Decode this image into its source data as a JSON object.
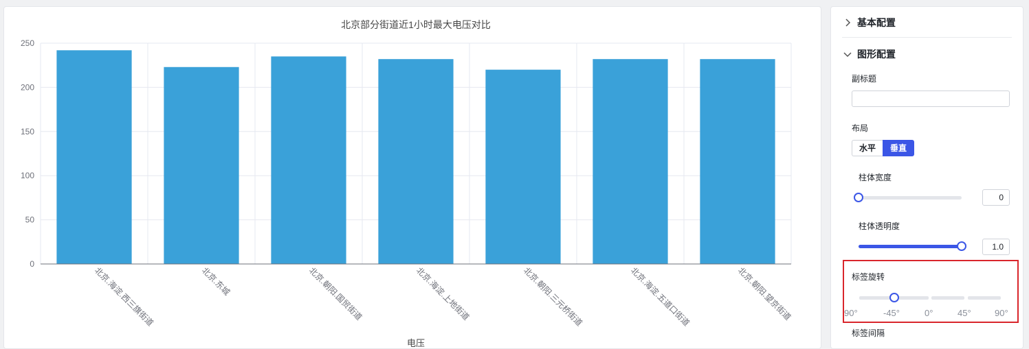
{
  "chart_data": {
    "type": "bar",
    "title": "北京部分街道近1小时最大电压对比",
    "xlabel": "电压",
    "ylabel": "",
    "categories": [
      "北京.海淀.西三旗街道",
      "北京.东城",
      "北京.朝阳.国贸街道",
      "北京.海淀.上地街道",
      "北京.朝阳.三元桥街道",
      "北京.海淀.五道口街道",
      "北京.朝阳.望京街道"
    ],
    "values": [
      242,
      223,
      235,
      232,
      220,
      232,
      232
    ],
    "ylim": [
      0,
      250
    ],
    "yticks": [
      0,
      50,
      100,
      150,
      200,
      250
    ],
    "grid": true,
    "bar_color": "#3aa1d9"
  },
  "config": {
    "basic_section": "基本配置",
    "graph_section": "图形配置",
    "subtitle_label": "副标题",
    "subtitle_value": "",
    "layout_label": "布局",
    "layout_options": [
      "水平",
      "垂直"
    ],
    "layout_selected": "垂直",
    "bar_width_label": "柱体宽度",
    "bar_width_value": "0",
    "bar_width_fraction": 0,
    "bar_opacity_label": "柱体透明度",
    "bar_opacity_value": "1.0",
    "bar_opacity_fraction": 1,
    "label_rotate_label": "标签旋转",
    "label_rotate_marks": [
      "90°",
      "-45°",
      "0°",
      "45°",
      "90°"
    ],
    "label_rotate_value_deg": -45,
    "label_interval_label": "标签间隔"
  },
  "colors": {
    "accent": "#3b56e6",
    "highlight": "#d9252b"
  }
}
